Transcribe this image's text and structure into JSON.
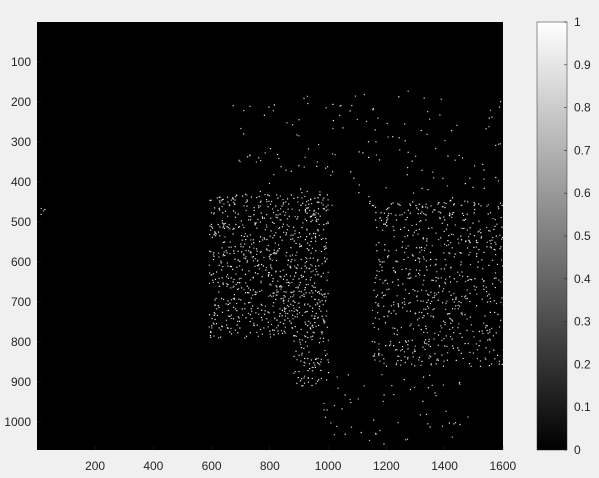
{
  "colors": {
    "figure_background": "#f0f0f0",
    "image_background": "#000000",
    "foreground": "#ffffff",
    "axis_text": "#262626"
  },
  "chart_data": {
    "type": "heatmap",
    "title": "",
    "xlabel": "",
    "ylabel": "",
    "colormap": "gray",
    "image_width": 1600,
    "image_height": 1070,
    "xlim": [
      0.5,
      1600.5
    ],
    "ylim": [
      0.5,
      1070.5
    ],
    "y_direction": "reverse",
    "x_ticks": [
      200,
      400,
      600,
      800,
      1000,
      1200,
      1400,
      1600
    ],
    "y_ticks": [
      100,
      200,
      300,
      400,
      500,
      600,
      700,
      800,
      900,
      1000
    ],
    "colorbar": {
      "clim": [
        0,
        1
      ],
      "ticks": [
        0,
        0.1,
        0.2,
        0.3,
        0.4,
        0.5,
        0.6,
        0.7,
        0.8,
        0.9,
        1
      ],
      "tick_labels": [
        "0",
        "0.1",
        "0.2",
        "0.3",
        "0.4",
        "0.5",
        "0.6",
        "0.7",
        "0.8",
        "0.9",
        "1"
      ]
    },
    "regions": [
      {
        "name": "left-cluster",
        "x_range": [
          590,
          1000
        ],
        "y_range": [
          430,
          790
        ]
      },
      {
        "name": "right-cluster",
        "x_range": [
          1150,
          1600
        ],
        "y_range": [
          450,
          860
        ]
      },
      {
        "name": "lower-tongue",
        "x_range": [
          880,
          1000
        ],
        "y_range": [
          780,
          910
        ]
      },
      {
        "name": "sparse-streaks",
        "x_range": [
          650,
          1600
        ],
        "y_range": [
          170,
          460
        ]
      },
      {
        "name": "lower-trail",
        "x_range": [
          980,
          1480
        ],
        "y_range": [
          880,
          1060
        ]
      },
      {
        "name": "left-speck",
        "x_range": [
          10,
          30
        ],
        "y_range": [
          440,
          480
        ]
      }
    ]
  }
}
